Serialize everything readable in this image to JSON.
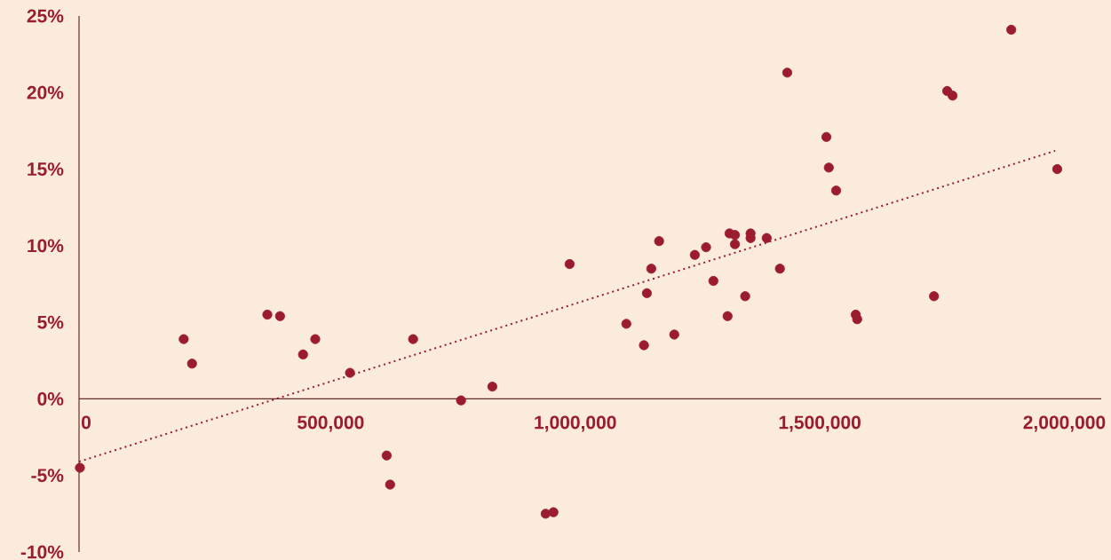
{
  "chart_data": {
    "type": "scatter",
    "x": [
      1800,
      214000,
      231000,
      385000,
      411000,
      458000,
      483000,
      554000,
      629000,
      636000,
      683000,
      781000,
      845000,
      954000,
      970000,
      1003000,
      1119000,
      1155000,
      1161000,
      1170000,
      1186000,
      1217000,
      1259000,
      1282000,
      1297000,
      1326000,
      1330000,
      1341000,
      1341000,
      1362000,
      1373000,
      1373000,
      1406000,
      1433000,
      1448000,
      1528000,
      1533000,
      1548000,
      1588000,
      1591000,
      1748000,
      1775000,
      1786000,
      1906000,
      2000000
    ],
    "series": [
      {
        "color": "#9b1c2e",
        "marker": "circle",
        "values": [
          -4.5,
          3.9,
          2.3,
          5.5,
          5.4,
          2.9,
          3.9,
          1.7,
          -3.7,
          -5.6,
          3.9,
          -0.1,
          0.8,
          -7.5,
          -7.4,
          8.8,
          4.9,
          3.5,
          6.9,
          8.5,
          10.3,
          4.2,
          9.4,
          9.9,
          7.7,
          5.4,
          10.8,
          10.7,
          10.1,
          6.7,
          10.8,
          10.5,
          10.5,
          8.5,
          21.3,
          17.1,
          15.1,
          13.6,
          5.5,
          5.2,
          6.7,
          20.1,
          19.8,
          24.1,
          15.0
        ]
      },
      {
        "type": "line",
        "color": "#9b1c2e",
        "line_style": "dotted",
        "marker": "none",
        "x": [
          0,
          1996000
        ],
        "values": [
          -4.1,
          16.2
        ]
      }
    ],
    "xlim": [
      0,
      2090000
    ],
    "ylim": [
      -10,
      25
    ],
    "xticks": [
      0,
      {
        "value": 500000,
        "label": "500,000"
      },
      {
        "value": 1000000,
        "label": "1,000,000"
      },
      {
        "value": 1500000,
        "label": "1,500,000"
      },
      {
        "value": 2000000,
        "label": "2,000,000"
      }
    ],
    "yticks": [
      {
        "value": -10,
        "label": "-10%"
      },
      {
        "value": -5,
        "label": "-5%"
      },
      {
        "value": 0,
        "label": "0%"
      },
      {
        "value": 5,
        "label": "5%"
      },
      {
        "value": 10,
        "label": "10%"
      },
      {
        "value": 15,
        "label": "15%"
      },
      {
        "value": 20,
        "label": "20%"
      },
      {
        "value": 25,
        "label": "25%"
      }
    ]
  }
}
